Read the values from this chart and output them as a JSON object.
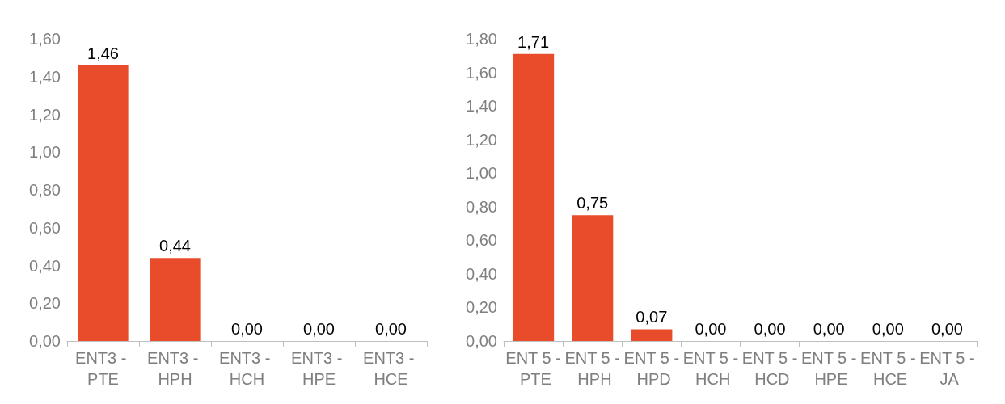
{
  "chart_data": [
    {
      "type": "bar",
      "categories": [
        "ENT3 - PTE",
        "ENT3 - HPH",
        "ENT3 - HCH",
        "ENT3 - HPE",
        "ENT3 - HCE"
      ],
      "values": [
        1.46,
        0.44,
        0,
        0,
        0
      ],
      "color": "#e84c2b",
      "value_labels": [
        "1,46",
        "0,44",
        "0,00",
        "0,00",
        "0,00"
      ],
      "ylim": [
        0,
        1.6
      ],
      "yticks": [
        {
          "value": 0,
          "label": "0,00"
        },
        {
          "value": 0.2,
          "label": "0,20"
        },
        {
          "value": 0.4,
          "label": "0,40"
        },
        {
          "value": 0.6,
          "label": "0,60"
        },
        {
          "value": 0.8,
          "label": "0,80"
        },
        {
          "value": 1,
          "label": "1,00"
        },
        {
          "value": 1.2,
          "label": "1,20"
        },
        {
          "value": 1.4,
          "label": "1,40"
        },
        {
          "value": 1.6,
          "label": "1,60"
        }
      ],
      "grid": false
    },
    {
      "type": "bar",
      "categories": [
        "ENT 5 - PTE",
        "ENT 5 - HPH",
        "ENT 5 - HPD",
        "ENT 5 - HCH",
        "ENT 5 - HCD",
        "ENT 5 - HPE",
        "ENT 5 - HCE",
        "ENT 5 - JA"
      ],
      "values": [
        1.71,
        0.75,
        0.07,
        0,
        0,
        0,
        0,
        0
      ],
      "color": "#e84c2b",
      "value_labels": [
        "1,71",
        "0,75",
        "0,07",
        "0,00",
        "0,00",
        "0,00",
        "0,00",
        "0,00"
      ],
      "ylim": [
        0,
        1.8
      ],
      "yticks": [
        {
          "value": 0,
          "label": "0,00"
        },
        {
          "value": 0.2,
          "label": "0,20"
        },
        {
          "value": 0.4,
          "label": "0,40"
        },
        {
          "value": 0.6,
          "label": "0,60"
        },
        {
          "value": 0.8,
          "label": "0,80"
        },
        {
          "value": 1,
          "label": "1,00"
        },
        {
          "value": 1.2,
          "label": "1,20"
        },
        {
          "value": 1.4,
          "label": "1,40"
        },
        {
          "value": 1.6,
          "label": "1,60"
        },
        {
          "value": 1.8,
          "label": "1,80"
        }
      ],
      "grid": false
    }
  ]
}
